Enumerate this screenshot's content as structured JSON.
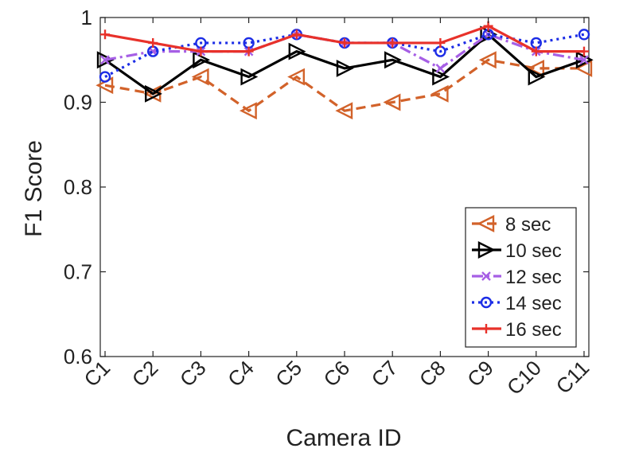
{
  "chart_data": {
    "type": "line",
    "title": "",
    "xlabel": "Camera ID",
    "ylabel": "F1 Score",
    "categories": [
      "C1",
      "C2",
      "C3",
      "C4",
      "C5",
      "C6",
      "C7",
      "C8",
      "C9",
      "C10",
      "C11"
    ],
    "ylim": [
      0.6,
      1.0
    ],
    "yticks": [
      "0.6",
      "0.7",
      "0.8",
      "0.9",
      "1"
    ],
    "grid": false,
    "legend_position": "lower-right",
    "series": [
      {
        "name": "8 sec",
        "color": "#D2622A",
        "line": "dashed",
        "marker": "triangle-left",
        "values": [
          0.92,
          0.91,
          0.93,
          0.89,
          0.93,
          0.89,
          0.9,
          0.91,
          0.95,
          0.94,
          0.94
        ]
      },
      {
        "name": "10 sec",
        "color": "#000000",
        "line": "solid",
        "marker": "triangle-right",
        "values": [
          0.95,
          0.91,
          0.95,
          0.93,
          0.96,
          0.94,
          0.95,
          0.93,
          0.98,
          0.93,
          0.95
        ]
      },
      {
        "name": "12 sec",
        "color": "#A65FE5",
        "line": "dashdot",
        "marker": "x",
        "values": [
          0.95,
          0.96,
          0.96,
          0.96,
          0.98,
          0.97,
          0.97,
          0.94,
          0.98,
          0.96,
          0.95
        ]
      },
      {
        "name": "14 sec",
        "color": "#1C2DE6",
        "line": "dotted",
        "marker": "circle",
        "values": [
          0.93,
          0.96,
          0.97,
          0.97,
          0.98,
          0.97,
          0.97,
          0.96,
          0.98,
          0.97,
          0.98
        ]
      },
      {
        "name": "16 sec",
        "color": "#E8312A",
        "line": "solid",
        "marker": "plus",
        "values": [
          0.98,
          0.97,
          0.96,
          0.96,
          0.98,
          0.97,
          0.97,
          0.97,
          0.99,
          0.96,
          0.96
        ]
      }
    ]
  }
}
